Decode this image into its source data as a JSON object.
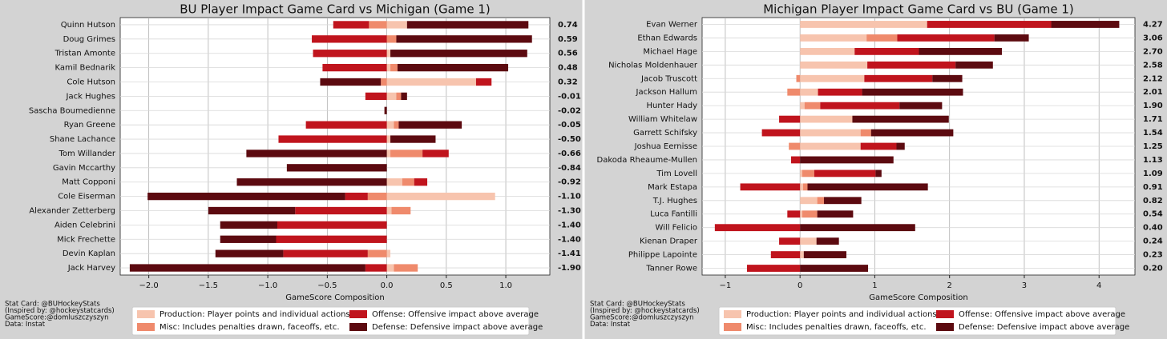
{
  "chart_data": [
    {
      "type": "diverging_bar",
      "title": "BU Player Impact Game Card vs Michigan (Game 1)",
      "x_label": "GameScore Composition",
      "categories": [
        "Quinn Hutson",
        "Doug Grimes",
        "Tristan Amonte",
        "Kamil Bednarik",
        "Cole Hutson",
        "Jack Hughes",
        "Sascha Boumedienne",
        "Ryan Greene",
        "Shane Lachance",
        "Tom Willander",
        "Gavin Mccarthy",
        "Matt Copponi",
        "Cole Eiserman",
        "Alexander Zetterberg",
        "Aiden Celebrini",
        "Mick Frechette",
        "Devin Kaplan",
        "Jack Harvey"
      ],
      "totals": [
        "0.74",
        "0.59",
        "0.56",
        "0.48",
        "0.32",
        "-0.01",
        "-0.02",
        "-0.05",
        "-0.50",
        "-0.66",
        "-0.84",
        "-0.92",
        "-1.10",
        "-1.30",
        "-1.40",
        "-1.40",
        "-1.41",
        "-1.90"
      ],
      "series": [
        {
          "name": "Production: Player points and individual actions",
          "color": "#f7c4ae",
          "values": [
            0.17,
            0,
            0.03,
            0.03,
            0.75,
            0.08,
            0,
            0.06,
            0.03,
            0.03,
            0,
            0.13,
            0.91,
            0.04,
            0,
            0,
            0.03,
            0.06
          ]
        },
        {
          "name": "Misc: Includes penalties drawn, faceoffs, etc.",
          "color": "#ef8a6c",
          "values": [
            -0.15,
            0.08,
            0,
            0.06,
            -0.05,
            0.04,
            0,
            0.04,
            0,
            0.27,
            0,
            0.1,
            -0.16,
            0.16,
            0,
            0,
            -0.16,
            0.2
          ]
        },
        {
          "name": "Offense: Offensive impact above average",
          "color": "#c0141d",
          "values": [
            -0.3,
            -0.63,
            -0.62,
            -0.54,
            0.13,
            -0.18,
            0,
            -0.68,
            -0.91,
            0.22,
            0,
            0.11,
            -0.19,
            -0.77,
            -0.92,
            -0.93,
            -0.71,
            -0.18
          ]
        },
        {
          "name": "Defense: Defensive impact above average",
          "color": "#5c0a10",
          "values": [
            1.02,
            1.14,
            1.15,
            0.93,
            -0.51,
            0.05,
            -0.02,
            0.53,
            0.38,
            -1.18,
            -0.84,
            -1.26,
            -1.66,
            -0.73,
            -0.48,
            -0.47,
            -0.57,
            -1.98
          ]
        }
      ],
      "xlim": [
        -2.24,
        1.37
      ],
      "xticks": [
        {
          "value": -2.0,
          "label": "−2.0"
        },
        {
          "value": -1.5,
          "label": "−1.5"
        },
        {
          "value": -1.0,
          "label": "−1.0"
        },
        {
          "value": -0.5,
          "label": "−0.5"
        },
        {
          "value": 0,
          "label": "0.0"
        },
        0.5,
        {
          "value": 1.0,
          "label": "1.0"
        }
      ],
      "grid": true,
      "notes": [
        "Stat Card: @BUHockeyStats",
        "(Inspired by: @hockeystatcards)",
        "GameScore:@domluszczyszyn",
        "Data: Instat"
      ]
    },
    {
      "type": "diverging_bar",
      "title": "Michigan Player Impact Game Card vs BU (Game 1)",
      "x_label": "GameScore Composition",
      "categories": [
        "Evan Werner",
        "Ethan Edwards",
        "Michael Hage",
        "Nicholas Moldenhauer",
        "Jacob Truscott",
        "Jackson Hallum",
        "Hunter Hady",
        "William Whitelaw",
        "Garrett Schifsky",
        "Joshua Eernisse",
        "Dakoda Rheaume-Mullen",
        "Tim Lovell",
        "Mark Estapa",
        "T.J. Hughes",
        "Luca Fantilli",
        "Will Felicio",
        "Kienan Draper",
        "Philippe Lapointe",
        "Tanner Rowe"
      ],
      "totals": [
        "4.27",
        "3.06",
        "2.70",
        "2.58",
        "2.12",
        "2.01",
        "1.90",
        "1.71",
        "1.54",
        "1.25",
        "1.13",
        "1.09",
        "0.91",
        "0.82",
        "0.54",
        "0.40",
        "0.24",
        "0.23",
        "0.20"
      ],
      "series": [
        {
          "name": "Production: Player points and individual actions",
          "color": "#f7c4ae",
          "values": [
            1.7,
            0.89,
            0.73,
            0.9,
            0.86,
            0.24,
            0.06,
            0.7,
            0.81,
            0.81,
            0,
            0.03,
            0.04,
            0.23,
            0.03,
            0,
            0.22,
            0.05,
            0
          ]
        },
        {
          "name": "Misc: Includes penalties drawn, faceoffs, etc.",
          "color": "#ef8a6c",
          "values": [
            0,
            0.41,
            0,
            0,
            -0.05,
            -0.17,
            0.21,
            0,
            0.14,
            -0.15,
            0,
            0.16,
            0.06,
            0.09,
            0.2,
            0,
            0,
            0,
            0
          ]
        },
        {
          "name": "Offense: Offensive impact above average",
          "color": "#c0141d",
          "values": [
            1.66,
            1.3,
            0.86,
            1.18,
            0.91,
            0.59,
            1.06,
            -0.28,
            -0.51,
            0.48,
            -0.12,
            0.82,
            -0.8,
            0,
            -0.17,
            -1.14,
            -0.28,
            -0.39,
            -0.71
          ]
        },
        {
          "name": "Defense: Defensive impact above average",
          "color": "#5c0a10",
          "values": [
            0.91,
            0.46,
            1.11,
            0.5,
            0.4,
            1.35,
            0.57,
            1.29,
            1.1,
            0.11,
            1.25,
            0.08,
            1.61,
            0.5,
            0.48,
            1.54,
            0.3,
            0.57,
            0.91
          ]
        }
      ],
      "xlim": [
        -1.31,
        4.48
      ],
      "xticks": [
        {
          "value": -1,
          "label": "−1"
        },
        0,
        1,
        2,
        3,
        4
      ],
      "grid": true,
      "notes": [
        "Stat Card: @BUHockeyStats",
        "(Inspired by: @hockeystatcards)",
        "GameScore:@domluszczyszyn",
        "Data: Instat"
      ]
    }
  ]
}
